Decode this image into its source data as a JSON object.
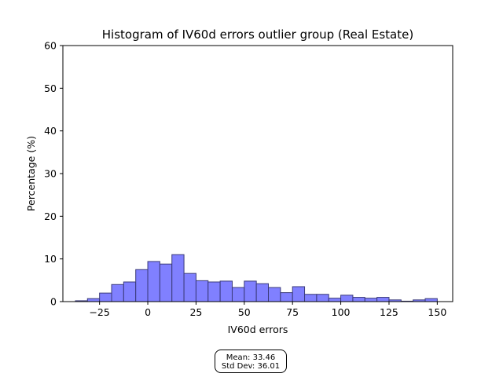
{
  "chart_data": {
    "type": "bar",
    "title": "Histogram of IV60d errors outlier group (Real Estate)",
    "xlabel": "IV60d errors",
    "ylabel": "Percentage (%)",
    "xlim": [
      -44,
      158
    ],
    "ylim": [
      0,
      60
    ],
    "xticks": [
      -25,
      0,
      25,
      50,
      75,
      100,
      125,
      150
    ],
    "xtick_labels": [
      "−25",
      "0",
      "25",
      "50",
      "75",
      "100",
      "125",
      "150"
    ],
    "yticks": [
      0,
      10,
      20,
      30,
      40,
      50,
      60
    ],
    "ytick_labels": [
      "0",
      "10",
      "20",
      "30",
      "40",
      "50",
      "60"
    ],
    "grid": false,
    "bar_color": "#8080ff",
    "bar_edge_color": "#3a3a7a",
    "bin_edges": [
      -37.5,
      -31.25,
      -25,
      -18.75,
      -12.5,
      -6.25,
      0,
      6.25,
      12.5,
      18.75,
      25,
      31.25,
      37.5,
      43.75,
      50,
      56.25,
      62.5,
      68.75,
      75,
      81.25,
      87.5,
      93.75,
      100,
      106.25,
      112.5,
      118.75,
      125,
      131.25,
      137.5,
      143.75,
      150
    ],
    "values": [
      0.2,
      0.7,
      2.0,
      4.0,
      4.6,
      7.5,
      9.4,
      8.8,
      11.0,
      6.6,
      4.9,
      4.6,
      4.8,
      3.3,
      4.8,
      4.2,
      3.3,
      2.1,
      3.5,
      1.7,
      1.7,
      0.8,
      1.5,
      1.0,
      0.8,
      1.0,
      0.4,
      0.1,
      0.4,
      0.7
    ]
  },
  "stats": {
    "mean_label": "Mean: 33.46",
    "std_label": "Std Dev: 36.01"
  }
}
